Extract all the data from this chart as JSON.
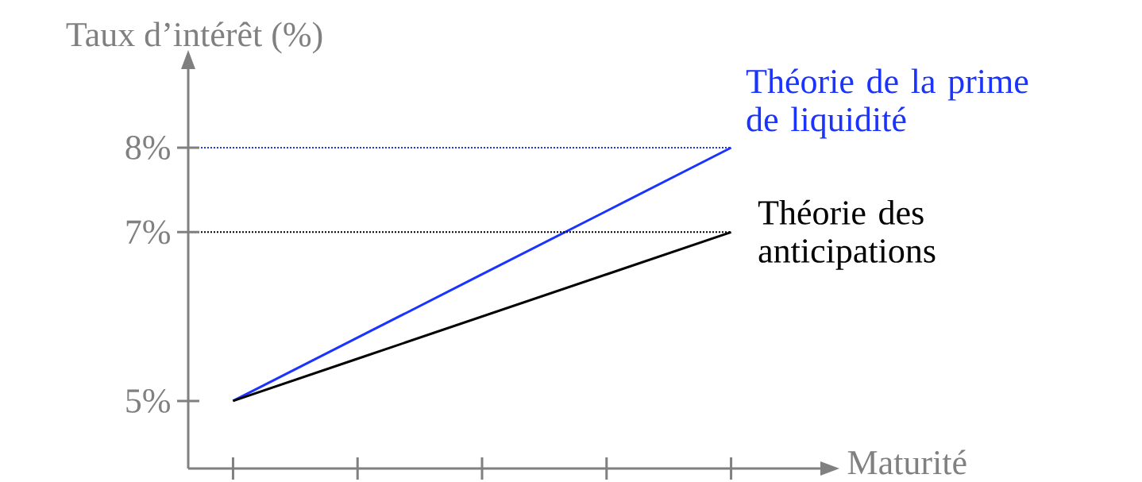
{
  "chart_data": {
    "type": "line",
    "xlabel": "Maturité",
    "ylabel": "Taux d’intérêt (%)",
    "categories": [
      null,
      null,
      null,
      null,
      null
    ],
    "series": [
      {
        "name": "Théorie de la prime de liquidité",
        "color": "#1a33ff",
        "values": [
          5,
          5.75,
          6.5,
          7.25,
          8
        ]
      },
      {
        "name": "Théorie des anticipations",
        "color": "#000000",
        "values": [
          5,
          5.5,
          6,
          6.5,
          7
        ]
      }
    ],
    "ylim": [
      4.2,
      8.95
    ],
    "yticks": [
      {
        "value": 5,
        "label": "5%"
      },
      {
        "value": 7,
        "label": "7%"
      },
      {
        "value": 8,
        "label": "8%"
      }
    ],
    "ref_lines": [
      {
        "axis": "y",
        "value": 8,
        "color": "#1a33ff",
        "line_style": "dotted"
      },
      {
        "axis": "y",
        "value": 7,
        "color": "#000000",
        "line_style": "dotted"
      }
    ],
    "marker": "none",
    "legend": false,
    "grid": false
  }
}
